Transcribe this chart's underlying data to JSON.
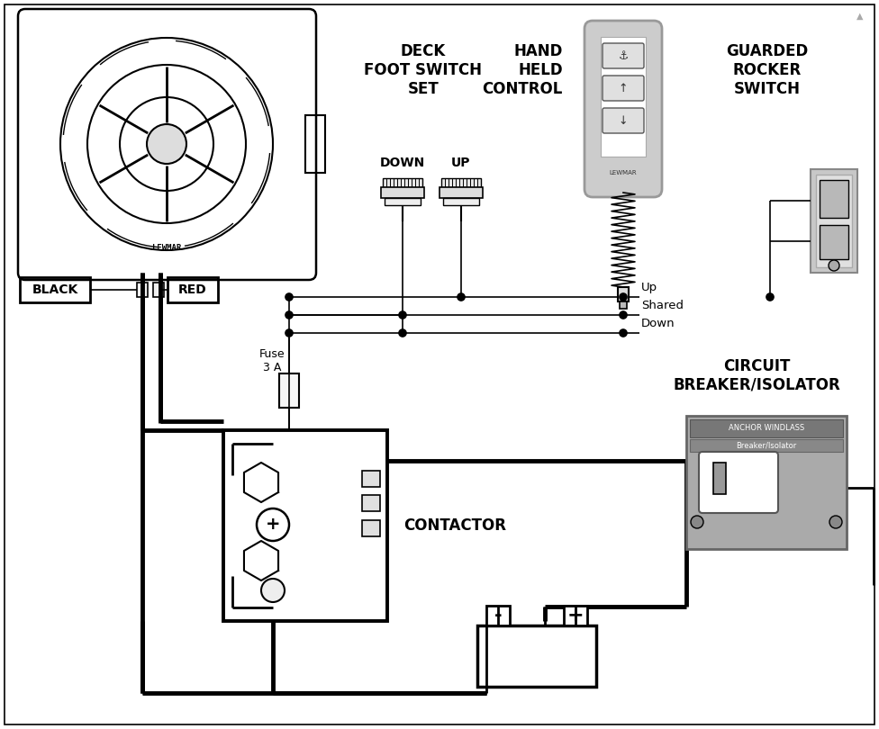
{
  "bg_color": "#ffffff",
  "line_color": "#000000",
  "thick_lw": 3.5,
  "thin_lw": 1.2,
  "med_lw": 2.0,
  "labels": {
    "deck_foot_switch": "DECK\nFOOT SWITCH\nSET",
    "hand_held": "HAND\nHELD\nCONTROL",
    "guarded_rocker": "GUARDED\nROCKER\nSWITCH",
    "circuit_breaker": "CIRCUIT\nBREAKER/ISOLATOR",
    "contactor": "CONTACTOR",
    "fuse": "Fuse\n3 A",
    "black": "BLACK",
    "red": "RED",
    "down_lbl": "DOWN",
    "up_lbl": "UP",
    "up_wire": "Up",
    "shared": "Shared",
    "down_wire": "Down",
    "anchor_windlass": "ANCHOR WINDLASS",
    "breaker_isolator": "Breaker/Isolator",
    "minus": "-",
    "plus": "+"
  }
}
